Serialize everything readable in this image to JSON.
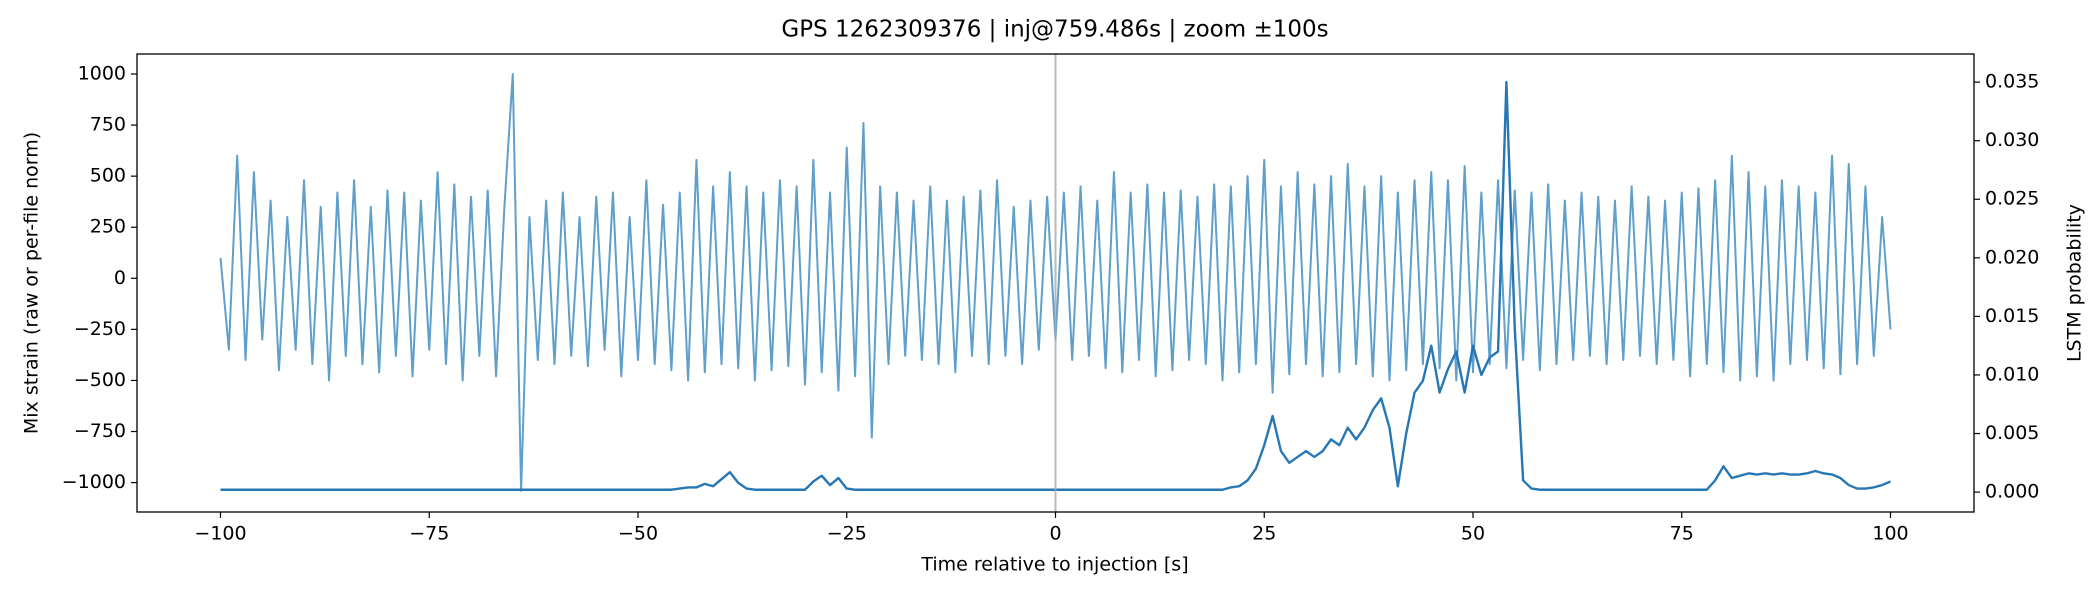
{
  "chart_data": {
    "type": "line",
    "title": "GPS 1262309376 | inj@759.486s | zoom ±100s",
    "xlabel": "Time relative to injection [s]",
    "ylabel": "Mix strain (raw or per-file norm)",
    "y2label": "LSTM probability",
    "xlim": [
      -110,
      110
    ],
    "ylim": [
      -1144,
      1098
    ],
    "y2lim": [
      -0.0017,
      0.0374
    ],
    "xticks": [
      {
        "value": -100,
        "label": "−100"
      },
      {
        "value": -75,
        "label": "−75"
      },
      {
        "value": -50,
        "label": "−50"
      },
      {
        "value": -25,
        "label": "−25"
      },
      0,
      25,
      50,
      75,
      100
    ],
    "yticks": [
      {
        "value": -1000,
        "label": "−1000"
      },
      {
        "value": -750,
        "label": "−750"
      },
      {
        "value": -500,
        "label": "−500"
      },
      {
        "value": -250,
        "label": "−250"
      },
      0,
      250,
      500,
      750,
      1000
    ],
    "y2ticks": [
      {
        "value": 0,
        "label": "0.000"
      },
      {
        "value": 0.005,
        "label": "0.005"
      },
      {
        "value": 0.01,
        "label": "0.010"
      },
      {
        "value": 0.015,
        "label": "0.015"
      },
      {
        "value": 0.02,
        "label": "0.020"
      },
      {
        "value": 0.025,
        "label": "0.025"
      },
      {
        "value": 0.03,
        "label": "0.030"
      },
      {
        "value": 0.035,
        "label": "0.035"
      }
    ],
    "vlines": [
      0
    ],
    "vline_color": "#aaaaaa",
    "x": [
      -100,
      -99,
      -98,
      -97,
      -96,
      -95,
      -94,
      -93,
      -92,
      -91,
      -90,
      -89,
      -88,
      -87,
      -86,
      -85,
      -84,
      -83,
      -82,
      -81,
      -80,
      -79,
      -78,
      -77,
      -76,
      -75,
      -74,
      -73,
      -72,
      -71,
      -70,
      -69,
      -68,
      -67,
      -66,
      -65,
      -64,
      -63,
      -62,
      -61,
      -60,
      -59,
      -58,
      -57,
      -56,
      -55,
      -54,
      -53,
      -52,
      -51,
      -50,
      -49,
      -48,
      -47,
      -46,
      -45,
      -44,
      -43,
      -42,
      -41,
      -40,
      -39,
      -38,
      -37,
      -36,
      -35,
      -34,
      -33,
      -32,
      -31,
      -30,
      -29,
      -28,
      -27,
      -26,
      -25,
      -24,
      -23,
      -22,
      -21,
      -20,
      -19,
      -18,
      -17,
      -16,
      -15,
      -14,
      -13,
      -12,
      -11,
      -10,
      -9,
      -8,
      -7,
      -6,
      -5,
      -4,
      -3,
      -2,
      -1,
      0,
      1,
      2,
      3,
      4,
      5,
      6,
      7,
      8,
      9,
      10,
      11,
      12,
      13,
      14,
      15,
      16,
      17,
      18,
      19,
      20,
      21,
      22,
      23,
      24,
      25,
      26,
      27,
      28,
      29,
      30,
      31,
      32,
      33,
      34,
      35,
      36,
      37,
      38,
      39,
      40,
      41,
      42,
      43,
      44,
      45,
      46,
      47,
      48,
      49,
      50,
      51,
      52,
      53,
      54,
      55,
      56,
      57,
      58,
      59,
      60,
      61,
      62,
      63,
      64,
      65,
      66,
      67,
      68,
      69,
      70,
      71,
      72,
      73,
      74,
      75,
      76,
      77,
      78,
      79,
      80,
      81,
      82,
      83,
      84,
      85,
      86,
      87,
      88,
      89,
      90,
      91,
      92,
      93,
      94,
      95,
      96,
      97,
      98,
      99,
      100
    ],
    "series": [
      {
        "color": "#5f9fcc",
        "axis": "y",
        "values": [
          100,
          -350,
          600,
          -400,
          520,
          -300,
          380,
          -450,
          300,
          -350,
          480,
          -420,
          350,
          -500,
          420,
          -380,
          480,
          -420,
          350,
          -460,
          430,
          -380,
          420,
          -480,
          380,
          -350,
          520,
          -420,
          460,
          -500,
          400,
          -380,
          430,
          -480,
          350,
          1000,
          -1040,
          300,
          -400,
          380,
          -420,
          420,
          -380,
          300,
          -430,
          400,
          -350,
          420,
          -480,
          300,
          -400,
          480,
          -420,
          360,
          -450,
          420,
          -500,
          580,
          -460,
          450,
          -420,
          520,
          -440,
          450,
          -500,
          420,
          -450,
          480,
          -430,
          450,
          -520,
          580,
          -460,
          420,
          -550,
          640,
          -480,
          760,
          -780,
          450,
          -420,
          420,
          -380,
          380,
          -400,
          450,
          -420,
          380,
          -460,
          400,
          -380,
          430,
          -420,
          480,
          -380,
          350,
          -420,
          380,
          -350,
          400,
          -300,
          420,
          -400,
          450,
          -380,
          380,
          -440,
          520,
          -460,
          420,
          -400,
          460,
          -480,
          420,
          -450,
          430,
          -400,
          400,
          -420,
          460,
          -500,
          450,
          -460,
          500,
          -420,
          580,
          -560,
          450,
          -470,
          520,
          -420,
          460,
          -480,
          500,
          -460,
          560,
          -420,
          450,
          -480,
          500,
          -500,
          420,
          -450,
          480,
          -420,
          520,
          -440,
          480,
          -500,
          550,
          -460,
          420,
          -420,
          480,
          -440,
          430,
          -400,
          420,
          -450,
          460,
          -420,
          380,
          -400,
          420,
          -380,
          400,
          -420,
          380,
          -400,
          450,
          -380,
          400,
          -420,
          380,
          -400,
          420,
          -480,
          440,
          -420,
          480,
          -460,
          600,
          -500,
          520,
          -480,
          450,
          -500,
          480,
          -420,
          450,
          -400,
          420,
          -440,
          600,
          -470,
          560,
          -420,
          450,
          -380,
          300,
          -250
        ]
      },
      {
        "color": "#2677b4",
        "axis": "y2",
        "values": [
          0.0002,
          0.0002,
          0.0002,
          0.0002,
          0.0002,
          0.0002,
          0.0002,
          0.0002,
          0.0002,
          0.0002,
          0.0002,
          0.0002,
          0.0002,
          0.0002,
          0.0002,
          0.0002,
          0.0002,
          0.0002,
          0.0002,
          0.0002,
          0.0002,
          0.0002,
          0.0002,
          0.0002,
          0.0002,
          0.0002,
          0.0002,
          0.0002,
          0.0002,
          0.0002,
          0.0002,
          0.0002,
          0.0002,
          0.0002,
          0.0002,
          0.0002,
          0.0002,
          0.0002,
          0.0002,
          0.0002,
          0.0002,
          0.0002,
          0.0002,
          0.0002,
          0.0002,
          0.0002,
          0.0002,
          0.0002,
          0.0002,
          0.0002,
          0.0002,
          0.0002,
          0.0002,
          0.0002,
          0.0002,
          0.0003,
          0.0004,
          0.0004,
          0.0007,
          0.0005,
          0.0011,
          0.0017,
          0.0008,
          0.0003,
          0.0002,
          0.0002,
          0.0002,
          0.0002,
          0.0002,
          0.0002,
          0.0002,
          0.0009,
          0.0014,
          0.0006,
          0.0012,
          0.0003,
          0.0002,
          0.0002,
          0.0002,
          0.0002,
          0.0002,
          0.0002,
          0.0002,
          0.0002,
          0.0002,
          0.0002,
          0.0002,
          0.0002,
          0.0002,
          0.0002,
          0.0002,
          0.0002,
          0.0002,
          0.0002,
          0.0002,
          0.0002,
          0.0002,
          0.0002,
          0.0002,
          0.0002,
          0.0002,
          0.0002,
          0.0002,
          0.0002,
          0.0002,
          0.0002,
          0.0002,
          0.0002,
          0.0002,
          0.0002,
          0.0002,
          0.0002,
          0.0002,
          0.0002,
          0.0002,
          0.0002,
          0.0002,
          0.0002,
          0.0002,
          0.0002,
          0.0002,
          0.0004,
          0.0005,
          0.001,
          0.002,
          0.004,
          0.0065,
          0.0035,
          0.0025,
          0.003,
          0.0035,
          0.003,
          0.0035,
          0.0045,
          0.004,
          0.0055,
          0.0045,
          0.0055,
          0.007,
          0.008,
          0.0055,
          0.0005,
          0.005,
          0.0085,
          0.0095,
          0.0125,
          0.0085,
          0.0105,
          0.012,
          0.0085,
          0.0125,
          0.01,
          0.0115,
          0.012,
          0.035,
          0.014,
          0.001,
          0.0003,
          0.0002,
          0.0002,
          0.0002,
          0.0002,
          0.0002,
          0.0002,
          0.0002,
          0.0002,
          0.0002,
          0.0002,
          0.0002,
          0.0002,
          0.0002,
          0.0002,
          0.0002,
          0.0002,
          0.0002,
          0.0002,
          0.0002,
          0.0002,
          0.0002,
          0.001,
          0.0022,
          0.0012,
          0.0014,
          0.0016,
          0.0015,
          0.0016,
          0.0015,
          0.0016,
          0.0015,
          0.0015,
          0.0016,
          0.0018,
          0.0016,
          0.0015,
          0.0012,
          0.0006,
          0.0003,
          0.0003,
          0.0004,
          0.0006,
          0.0009
        ]
      }
    ]
  }
}
